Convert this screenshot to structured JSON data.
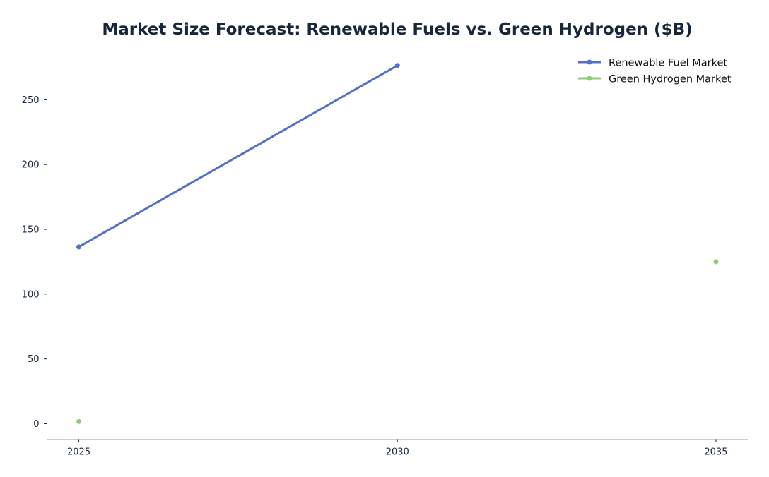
{
  "chart_data": {
    "type": "line",
    "title": "Market Size Forecast: Renewable Fuels vs. Green Hydrogen ($B)",
    "xlabel": "",
    "ylabel": "",
    "x": [
      2025,
      2030,
      2035
    ],
    "x_tick_labels": [
      "2025",
      "2030",
      "2035"
    ],
    "y_ticks": [
      0,
      50,
      100,
      150,
      200,
      250
    ],
    "y_tick_labels": [
      "0",
      "50",
      "100",
      "150",
      "200",
      "250"
    ],
    "xlim": [
      2024.5,
      2035.5
    ],
    "ylim": [
      -12,
      290
    ],
    "grid": false,
    "legend_position": "top-right",
    "series": [
      {
        "name": "Renewable Fuel Market",
        "color": "#5470c6",
        "values": [
          136.5,
          276.5,
          null
        ]
      },
      {
        "name": "Green Hydrogen Market",
        "color": "#91cc75",
        "values": [
          1.7,
          null,
          125
        ]
      }
    ]
  }
}
